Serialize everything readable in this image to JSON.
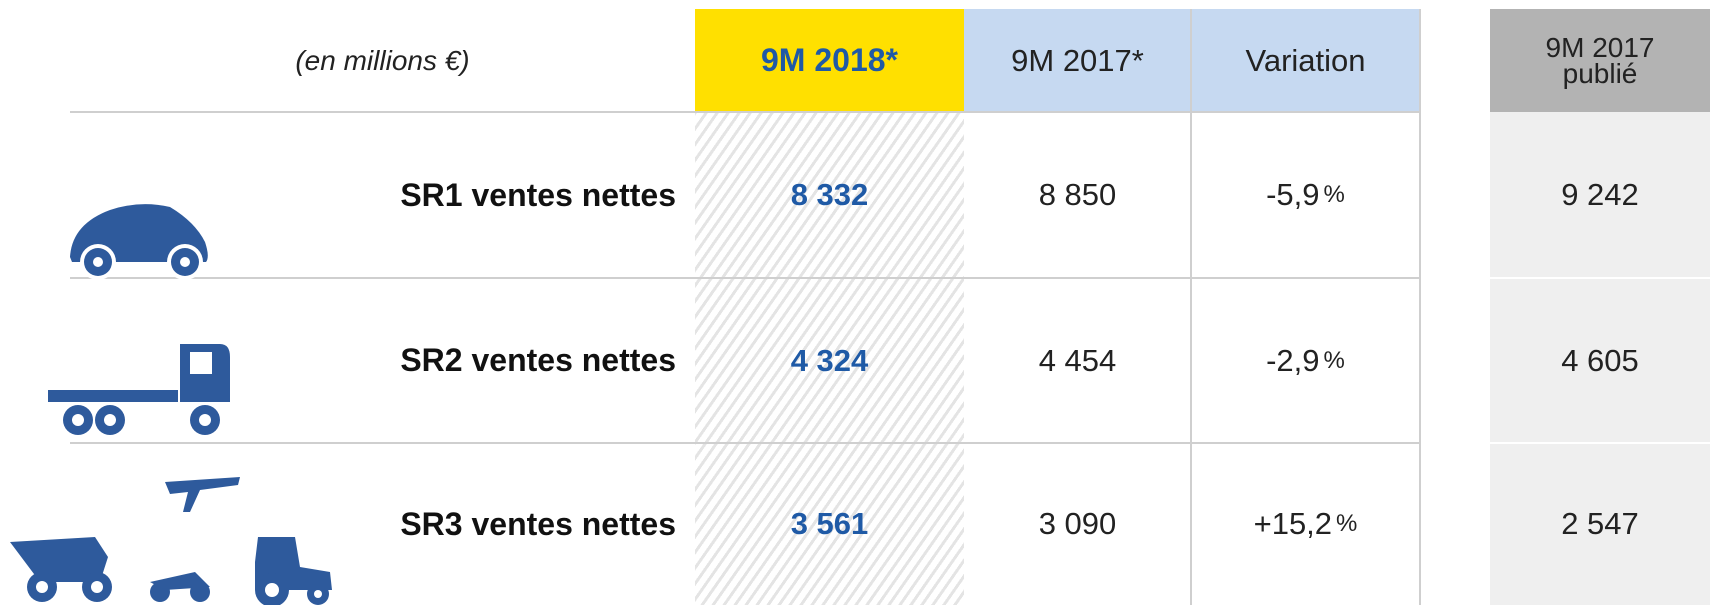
{
  "header": {
    "unit": "(en millions €)",
    "columns": [
      "9M 2018*",
      "9M 2017*",
      "Variation",
      "9M 2017 publié"
    ]
  },
  "table": {
    "rows": [
      {
        "label": "SR1 ventes nettes",
        "cells": [
          "8 332",
          "8 850",
          {
            "value": "-5,9",
            "unit": "%"
          },
          "9 242"
        ]
      },
      {
        "label": "SR2 ventes nettes",
        "cells": [
          "4 324",
          "4 454",
          {
            "value": "-2,9",
            "unit": "%"
          },
          "4 605"
        ]
      },
      {
        "label": "SR3 ventes nettes",
        "cells": [
          "3 561",
          "3 090",
          {
            "value": "+15,2",
            "unit": "%"
          },
          "2 547"
        ]
      }
    ]
  }
}
